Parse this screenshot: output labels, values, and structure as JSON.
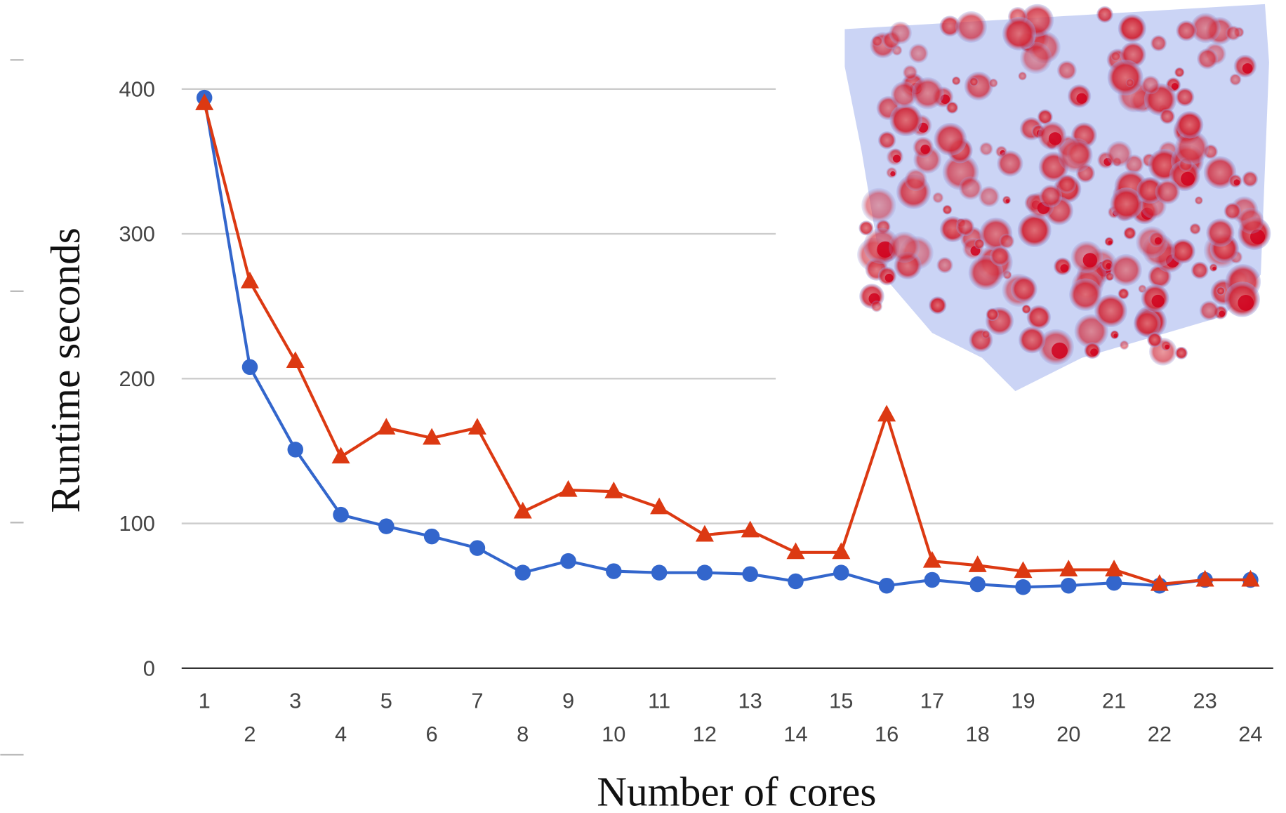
{
  "chart_data": {
    "type": "line",
    "x_label": "Number of cores",
    "y_label": "Runtime seconds",
    "categories": [
      "1",
      "2",
      "3",
      "4",
      "5",
      "6",
      "7",
      "8",
      "9",
      "10",
      "11",
      "12",
      "13",
      "14",
      "15",
      "16",
      "17",
      "18",
      "19",
      "20",
      "21",
      "22",
      "23",
      "24"
    ],
    "series": [
      {
        "color": "#3366cc",
        "marker": "circle",
        "values": [
          394,
          208,
          151,
          106,
          98,
          91,
          83,
          66,
          74,
          67,
          66,
          66,
          65,
          60,
          66,
          57,
          61,
          58,
          56,
          57,
          59,
          57,
          61,
          61
        ]
      },
      {
        "color": "#dc3912",
        "marker": "triangle",
        "values": [
          390,
          267,
          212,
          146,
          166,
          159,
          166,
          108,
          123,
          122,
          111,
          92,
          95,
          80,
          80,
          175,
          74,
          71,
          67,
          68,
          68,
          58,
          61,
          61
        ]
      }
    ],
    "ylim": [
      0,
      400
    ],
    "yticks": [
      0,
      100,
      200,
      300,
      400
    ],
    "grid": true
  }
}
